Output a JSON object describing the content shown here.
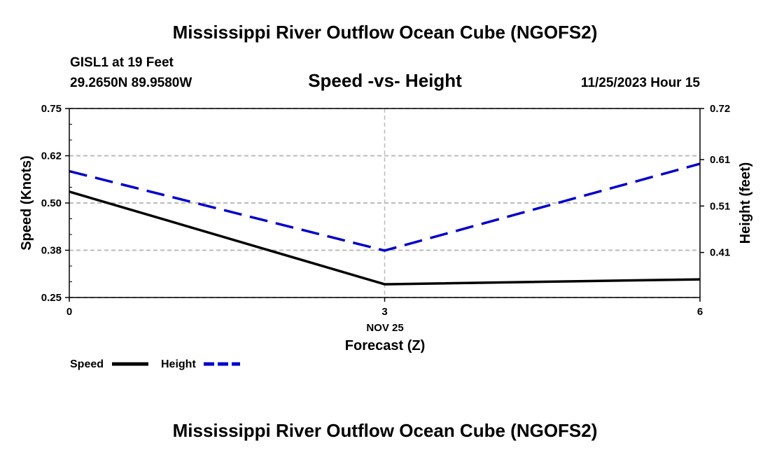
{
  "header": {
    "title": "Mississippi River Outflow Ocean Cube (NGOFS2)",
    "station": "GISL1 at 19 Feet",
    "coords": "29.2650N  89.9580W",
    "subtitle": "Speed -vs- Height",
    "datetime": "11/25/2023 Hour 15"
  },
  "footer": {
    "title": "Mississippi River Outflow Ocean Cube (NGOFS2)"
  },
  "chart_data": {
    "type": "line",
    "title": "Speed -vs- Height",
    "x": [
      0,
      3,
      6
    ],
    "xlim": [
      0,
      6
    ],
    "x_ticks": [
      "0",
      "3",
      "6"
    ],
    "x_date_label": "NOV 25",
    "xlabel": "Forecast (Z)",
    "ylabel_left": "Speed (Knots)",
    "ylabel_right": "Height (feet)",
    "ylim_left": [
      0.25,
      0.75
    ],
    "ylim_right": [
      0.313,
      0.72
    ],
    "left_ticks": [
      {
        "value": 0.75,
        "label": "0.75"
      },
      {
        "value": 0.625,
        "label": "0.62"
      },
      {
        "value": 0.5,
        "label": "0.50"
      },
      {
        "value": 0.375,
        "label": "0.38"
      },
      {
        "value": 0.25,
        "label": "0.25"
      }
    ],
    "right_ticks": [
      {
        "value": 0.72,
        "label": "0.72"
      },
      {
        "value": 0.61,
        "label": "0.61"
      },
      {
        "value": 0.51,
        "label": "0.51"
      },
      {
        "value": 0.41,
        "label": "0.41"
      }
    ],
    "grid": true,
    "series": [
      {
        "name": "Speed",
        "axis": "left",
        "values": [
          0.53,
          0.285,
          0.298
        ],
        "color": "#000000",
        "dashed": false
      },
      {
        "name": "Height",
        "axis": "right",
        "values": [
          0.585,
          0.414,
          0.601
        ],
        "color": "#0000cc",
        "dashed": true
      }
    ]
  }
}
